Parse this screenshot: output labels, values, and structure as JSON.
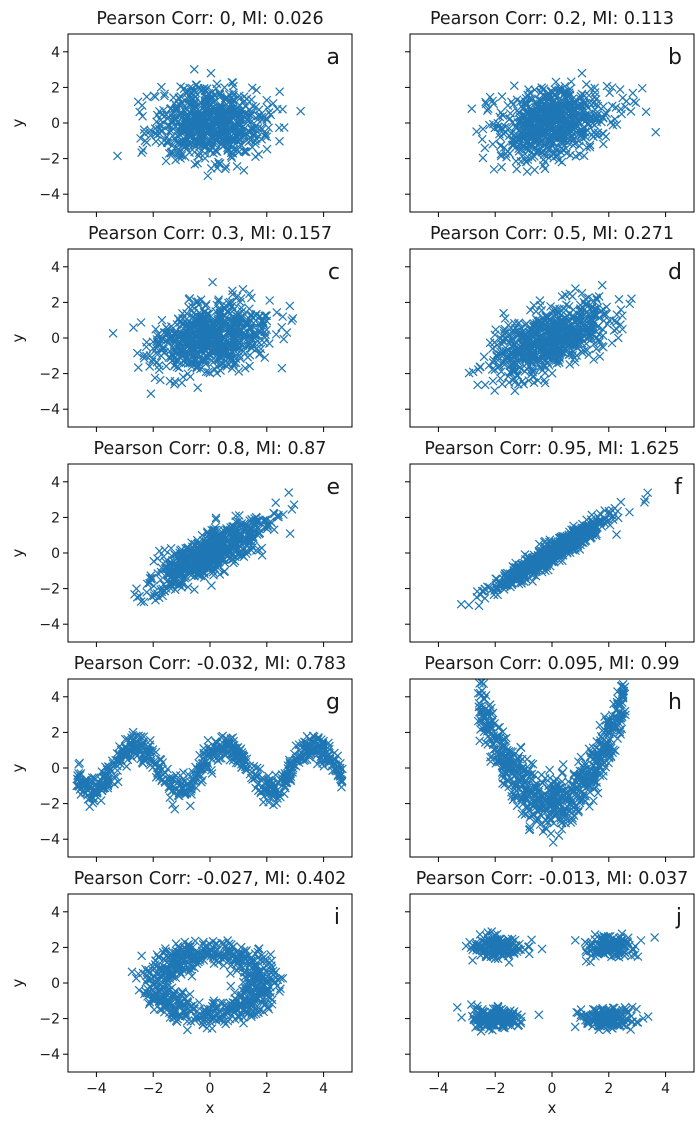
{
  "figure": {
    "marker_color": "#1f77b4",
    "marker": "x",
    "xlim": [
      -5,
      5
    ],
    "ylim": [
      -5,
      5
    ],
    "x_ticks": [
      -4,
      -2,
      0,
      2,
      4
    ],
    "y_ticks": [
      -4,
      -2,
      0,
      2,
      4
    ],
    "xlabel": "x",
    "ylabel": "y"
  },
  "chart_data": [
    {
      "type": "scatter",
      "title": "Pearson Corr: 0, MI: 0.026",
      "panel_label": "a",
      "pattern": "gaussian",
      "corr": 0,
      "sx": 1.0,
      "sy": 1.0,
      "n": 700
    },
    {
      "type": "scatter",
      "title": "Pearson Corr: 0.2, MI: 0.113",
      "panel_label": "b",
      "pattern": "gaussian",
      "corr": 0.2,
      "sx": 1.0,
      "sy": 1.0,
      "n": 700
    },
    {
      "type": "scatter",
      "title": "Pearson Corr: 0.3, MI: 0.157",
      "panel_label": "c",
      "pattern": "gaussian",
      "corr": 0.3,
      "sx": 1.0,
      "sy": 1.0,
      "n": 700
    },
    {
      "type": "scatter",
      "title": "Pearson Corr: 0.5, MI: 0.271",
      "panel_label": "d",
      "pattern": "gaussian",
      "corr": 0.5,
      "sx": 1.0,
      "sy": 1.0,
      "n": 700
    },
    {
      "type": "scatter",
      "title": "Pearson Corr: 0.8, MI: 0.87",
      "panel_label": "e",
      "pattern": "gaussian",
      "corr": 0.8,
      "sx": 1.0,
      "sy": 1.0,
      "n": 700
    },
    {
      "type": "scatter",
      "title": "Pearson Corr: 0.95, MI: 1.625",
      "panel_label": "f",
      "pattern": "gaussian",
      "corr": 0.95,
      "sx": 1.0,
      "sy": 1.0,
      "n": 700
    },
    {
      "type": "scatter",
      "title": "Pearson Corr: -0.032, MI: 0.783",
      "panel_label": "g",
      "pattern": "sine",
      "corr": -0.032,
      "n": 700
    },
    {
      "type": "scatter",
      "title": "Pearson Corr: 0.095, MI: 0.99",
      "panel_label": "h",
      "pattern": "parabola",
      "corr": 0.095,
      "n": 700
    },
    {
      "type": "scatter",
      "title": "Pearson Corr: -0.027, MI: 0.402",
      "panel_label": "i",
      "pattern": "ring",
      "corr": -0.027,
      "n": 700
    },
    {
      "type": "scatter",
      "title": "Pearson Corr: -0.013, MI: 0.037",
      "panel_label": "j",
      "pattern": "four-clusters",
      "corr": -0.013,
      "n": 700
    }
  ]
}
